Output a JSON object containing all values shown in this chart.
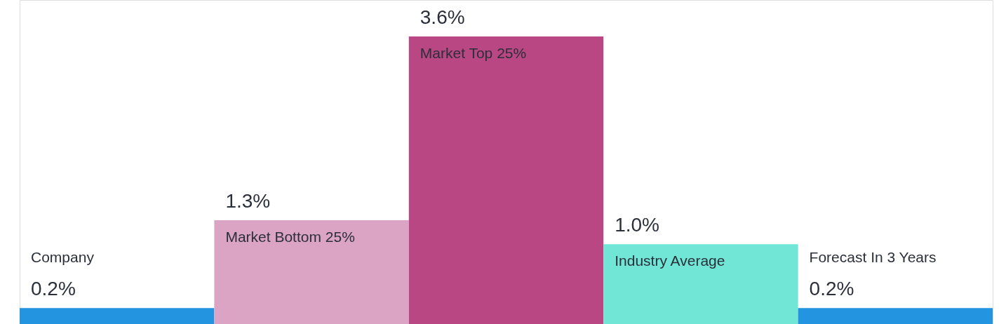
{
  "chart_data": {
    "type": "bar",
    "categories": [
      "Company",
      "Market Bottom 25%",
      "Market Top 25%",
      "Industry Average",
      "Forecast In 3 Years"
    ],
    "values": [
      0.2,
      1.3,
      3.6,
      1.0,
      0.2
    ],
    "value_labels": [
      "0.2%",
      "1.3%",
      "3.6%",
      "1.0%",
      "0.2%"
    ],
    "colors": [
      "#2394df",
      "#dba3c4",
      "#b94783",
      "#71e6d6",
      "#2394df"
    ],
    "grid": false,
    "tick_labels": false
  }
}
